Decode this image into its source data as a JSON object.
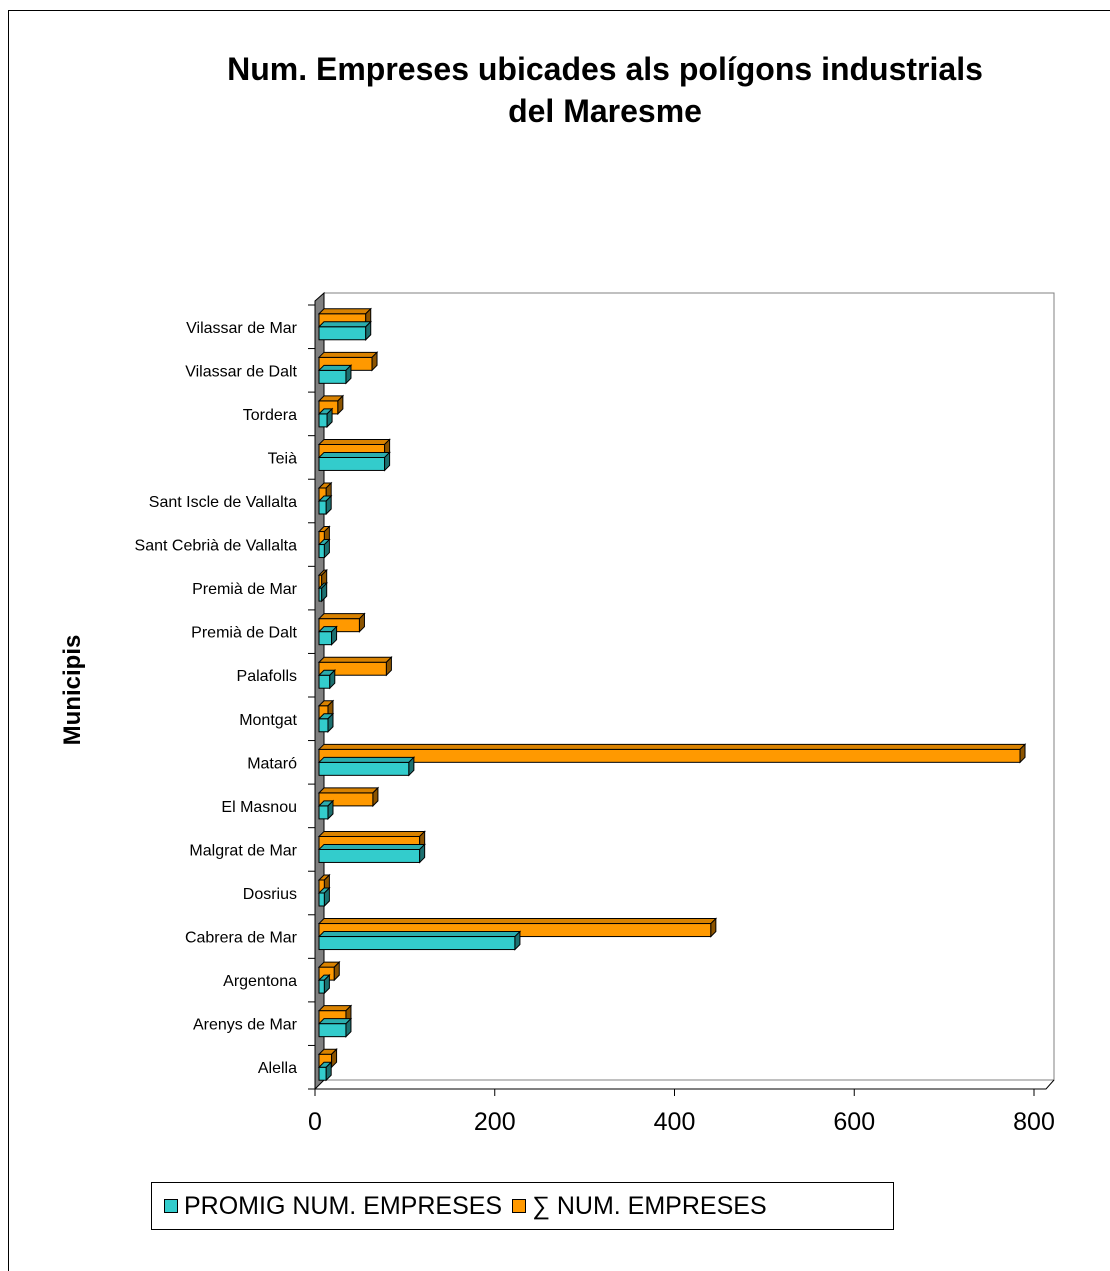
{
  "chart_data": {
    "type": "bar",
    "orientation": "horizontal",
    "title": "Num. Empreses ubicades als polígons industrials del Maresme",
    "title_lines": [
      "Num. Empreses ubicades als polígons industrials",
      "del Maresme"
    ],
    "ylabel": "Municipis",
    "xlabel": "",
    "xlim": [
      0,
      800
    ],
    "xticks": [
      "0",
      "200",
      "400",
      "600",
      "800"
    ],
    "categories": [
      "Alella",
      "Arenys de Mar",
      "Argentona",
      "Cabrera de Mar",
      "Dosrius",
      "Malgrat de Mar",
      "El Masnou",
      "Mataró",
      "Montgat",
      "Palafolls",
      "Premià de Dalt",
      "Premià de Mar",
      "Sant Cebrià de Vallalta",
      "Sant Iscle de Vallalta",
      "Teià",
      "Tordera",
      "Vilassar de Dalt",
      "Vilassar de Mar"
    ],
    "series": [
      {
        "name": "PROMIG NUM. EMPRESES",
        "color": "#33CCCC",
        "values": [
          8,
          30,
          6,
          218,
          6,
          112,
          10,
          100,
          10,
          12,
          14,
          3,
          6,
          8,
          73,
          9,
          30,
          52
        ]
      },
      {
        "name": "∑ NUM. EMPRESES",
        "color": "#FF9900",
        "values": [
          14,
          30,
          17,
          436,
          6,
          112,
          60,
          780,
          10,
          75,
          45,
          3,
          6,
          8,
          73,
          21,
          59,
          52
        ]
      }
    ],
    "legend_position": "bottom",
    "grid": false
  }
}
